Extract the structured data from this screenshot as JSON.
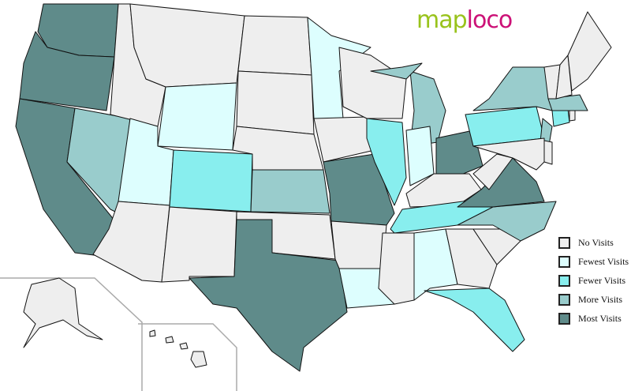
{
  "logo": {
    "part1": "map",
    "part2": "loco"
  },
  "legend": [
    {
      "key": "none",
      "label": "No Visits",
      "color": "#eeeeee"
    },
    {
      "key": "fewest",
      "label": "Fewest Visits",
      "color": "#ddfefe"
    },
    {
      "key": "fewer",
      "label": "Fewer Visits",
      "color": "#88eeee"
    },
    {
      "key": "more",
      "label": "More Visits",
      "color": "#99cccc"
    },
    {
      "key": "most",
      "label": "Most Visits",
      "color": "#5f8b8a"
    }
  ],
  "states": {
    "WA": "most",
    "OR": "most",
    "CA": "most",
    "TX": "most",
    "MO": "most",
    "OH": "most",
    "VA": "most",
    "NV": "more",
    "KS": "more",
    "MI": "more",
    "NY": "more",
    "NJ": "more",
    "NC": "more",
    "MA": "more",
    "CO": "fewer",
    "IL": "fewer",
    "TN": "fewer",
    "PA": "fewer",
    "FL": "fewer",
    "CT": "fewer",
    "WY": "fewest",
    "UT": "fewest",
    "MN": "fewest",
    "IN": "fewest",
    "AL": "fewest",
    "LA": "fewest",
    "ID": "none",
    "MT": "none",
    "AZ": "none",
    "NM": "none",
    "ND": "none",
    "SD": "none",
    "NE": "none",
    "OK": "none",
    "IA": "none",
    "AR": "none",
    "WI": "none",
    "KY": "none",
    "MS": "none",
    "GA": "none",
    "SC": "none",
    "WV": "none",
    "MD": "none",
    "DE": "none",
    "VT": "none",
    "NH": "none",
    "ME": "none",
    "RI": "none",
    "AK": "none",
    "HI": "none"
  }
}
